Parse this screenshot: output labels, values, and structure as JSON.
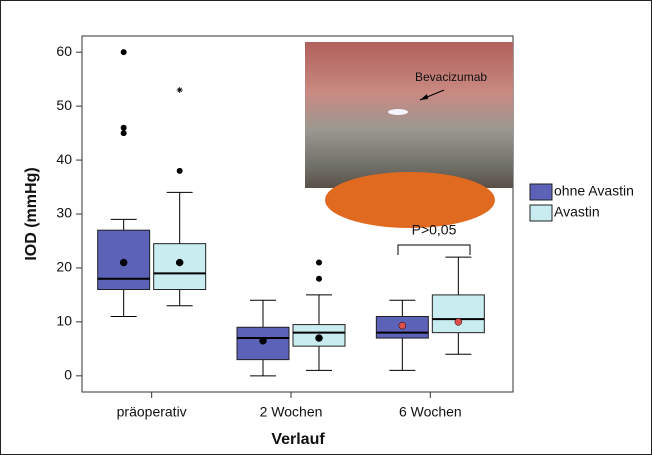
{
  "chart_data": {
    "type": "box",
    "ylabel": "IOD (mmHg)",
    "xlabel": "Verlauf",
    "categories": [
      "präoperativ",
      "2 Wochen",
      "6 Wochen"
    ],
    "ylim": [
      -3,
      63
    ],
    "yticks": [
      0,
      10,
      20,
      30,
      40,
      50,
      60
    ],
    "mean_colors": [
      "#000000",
      "#000000",
      "#e0504a"
    ],
    "series": [
      {
        "name": "ohne Avastin",
        "color": "#5b62b8",
        "min": [
          11,
          0,
          1
        ],
        "q1": [
          16,
          3,
          7
        ],
        "median": [
          18,
          7,
          8
        ],
        "q3": [
          27,
          9,
          11
        ],
        "max": [
          29,
          14,
          14
        ],
        "mean": [
          21,
          6.5,
          9.3
        ],
        "outliers": [
          [
            45,
            46,
            60
          ],
          [],
          []
        ],
        "extremes": [
          [],
          [],
          []
        ]
      },
      {
        "name": "Avastin",
        "color": "#c8ecf0",
        "min": [
          13,
          1,
          4
        ],
        "q1": [
          16,
          5.5,
          8
        ],
        "median": [
          19,
          8,
          10.5
        ],
        "q3": [
          24.5,
          9.5,
          15
        ],
        "max": [
          34,
          15,
          22
        ],
        "mean": [
          21,
          7,
          10
        ],
        "outliers": [
          [
            38
          ],
          [
            18,
            21
          ],
          []
        ],
        "extremes": [
          [
            53
          ],
          [],
          []
        ]
      }
    ],
    "annotation": "P>0,05",
    "inset_label": "Bevacizumab"
  }
}
